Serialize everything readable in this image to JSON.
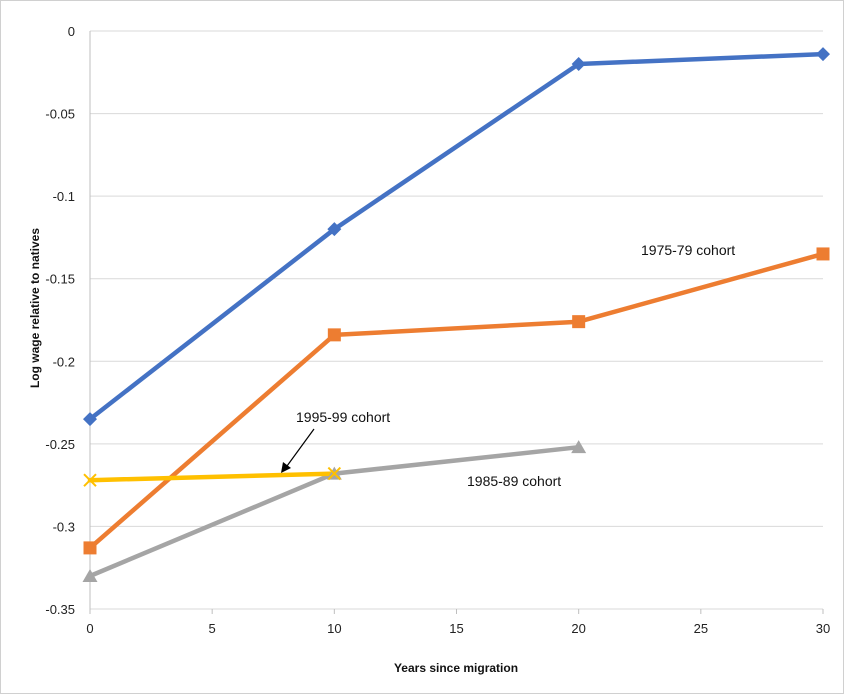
{
  "chart_data": {
    "type": "line",
    "title": "",
    "xlabel": "Years since migration",
    "ylabel": "Log wage relative to natives",
    "xlim": [
      0,
      30
    ],
    "ylim": [
      -0.35,
      0
    ],
    "x_ticks": [
      0,
      5,
      10,
      15,
      20,
      25,
      30
    ],
    "y_ticks": [
      0,
      -0.05,
      -0.1,
      -0.15,
      -0.2,
      -0.25,
      -0.3,
      -0.35
    ],
    "x_tick_labels": [
      "0",
      "5",
      "10",
      "15",
      "20",
      "25",
      "30"
    ],
    "y_tick_labels": [
      "0",
      "-0.05",
      "-0.1",
      "-0.15",
      "-0.2",
      "-0.25",
      "-0.3",
      "-0.35"
    ],
    "grid": "horizontal",
    "legend": "none",
    "series": [
      {
        "color": "#4472C4",
        "marker": "diamond",
        "x": [
          0,
          10,
          20,
          30
        ],
        "values": [
          -0.235,
          -0.12,
          -0.02,
          -0.014
        ]
      },
      {
        "name": "1975-79 cohort",
        "color": "#ED7D31",
        "marker": "square",
        "x": [
          0,
          10,
          20,
          30
        ],
        "values": [
          -0.313,
          -0.184,
          -0.176,
          -0.135
        ]
      },
      {
        "name": "1985-89 cohort",
        "color": "#A5A5A5",
        "marker": "triangle",
        "x": [
          0,
          10,
          20
        ],
        "values": [
          -0.33,
          -0.268,
          -0.252
        ]
      },
      {
        "name": "1995-99 cohort",
        "color": "#FFC000",
        "marker": "x",
        "x": [
          0,
          10
        ],
        "values": [
          -0.272,
          -0.268
        ]
      }
    ],
    "annotations": [
      {
        "text": "1975-79 cohort",
        "series": 1
      },
      {
        "text": "1985-89 cohort",
        "series": 2
      },
      {
        "text": "1995-99 cohort",
        "series": 3,
        "arrow": true
      }
    ]
  }
}
